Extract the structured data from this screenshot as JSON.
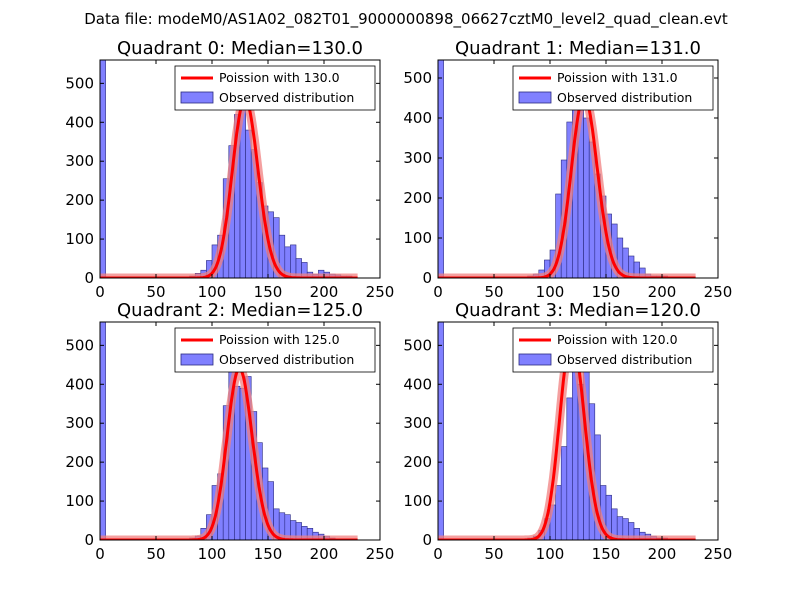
{
  "figure_title": "Data file: modeM0/AS1A02_082T01_9000000898_06627cztM0_level2_quad_clean.evt",
  "colors": {
    "hist_fill": "#8080ff",
    "hist_edge": "#2a2a80",
    "poisson": "#ff0000",
    "poisson_band": "#f08080",
    "axes": "#000000",
    "legend_border": "#000000"
  },
  "chart_data": [
    {
      "type": "bar",
      "title": "Quadrant 0: Median=130.0",
      "median": 130.0,
      "legend": [
        "Poission with 130.0",
        "Observed distribution"
      ],
      "legend_position": "top-right",
      "xlim": [
        0,
        250
      ],
      "ylim": [
        0,
        560
      ],
      "xticks": [
        0,
        50,
        100,
        150,
        200,
        250
      ],
      "yticks": [
        0,
        100,
        200,
        300,
        400,
        500
      ],
      "bin_width": 5,
      "bin_starts": [
        0,
        80,
        85,
        90,
        95,
        100,
        105,
        110,
        115,
        120,
        125,
        130,
        135,
        140,
        145,
        150,
        155,
        160,
        165,
        170,
        175,
        180,
        185,
        190,
        195,
        200,
        205,
        210,
        215,
        220
      ],
      "values": [
        560,
        5,
        12,
        20,
        45,
        85,
        110,
        255,
        340,
        420,
        460,
        380,
        330,
        245,
        185,
        170,
        155,
        110,
        80,
        85,
        50,
        40,
        15,
        10,
        20,
        15,
        10,
        8,
        5,
        5
      ]
    },
    {
      "type": "bar",
      "title": "Quadrant 1: Median=131.0",
      "median": 131.0,
      "legend": [
        "Poission with 131.0",
        "Observed distribution"
      ],
      "legend_position": "top-right",
      "xlim": [
        0,
        250
      ],
      "ylim": [
        0,
        545
      ],
      "xticks": [
        0,
        50,
        100,
        150,
        200,
        250
      ],
      "yticks": [
        0,
        100,
        200,
        300,
        400,
        500
      ],
      "bin_width": 5,
      "bin_starts": [
        0,
        80,
        85,
        90,
        95,
        100,
        105,
        110,
        115,
        120,
        125,
        130,
        135,
        140,
        145,
        150,
        155,
        160,
        165,
        170,
        175,
        180,
        185,
        190,
        195,
        200,
        205,
        210,
        215,
        220
      ],
      "values": [
        545,
        5,
        10,
        20,
        45,
        70,
        210,
        295,
        390,
        420,
        455,
        400,
        340,
        260,
        205,
        160,
        135,
        100,
        75,
        55,
        40,
        25,
        10,
        5,
        5,
        5,
        3,
        3,
        2,
        2
      ]
    },
    {
      "type": "bar",
      "title": "Quadrant 2: Median=125.0",
      "median": 125.0,
      "legend": [
        "Poission with 125.0",
        "Observed distribution"
      ],
      "legend_position": "top-right",
      "xlim": [
        0,
        250
      ],
      "ylim": [
        0,
        560
      ],
      "xticks": [
        0,
        50,
        100,
        150,
        200,
        250
      ],
      "yticks": [
        0,
        100,
        200,
        300,
        400,
        500
      ],
      "bin_width": 5,
      "bin_starts": [
        0,
        80,
        85,
        90,
        95,
        100,
        105,
        110,
        115,
        120,
        125,
        130,
        135,
        140,
        145,
        150,
        155,
        160,
        165,
        170,
        175,
        180,
        185,
        190,
        195,
        200,
        205,
        210
      ],
      "values": [
        560,
        5,
        10,
        30,
        65,
        140,
        170,
        345,
        440,
        395,
        390,
        420,
        330,
        250,
        185,
        150,
        80,
        70,
        65,
        50,
        45,
        35,
        30,
        20,
        15,
        10,
        5,
        3
      ]
    },
    {
      "type": "bar",
      "title": "Quadrant 3: Median=120.0",
      "median": 120.0,
      "legend": [
        "Poission with 120.0",
        "Observed distribution"
      ],
      "legend_position": "top-right",
      "xlim": [
        0,
        250
      ],
      "ylim": [
        0,
        560
      ],
      "xticks": [
        0,
        50,
        100,
        150,
        200,
        250
      ],
      "yticks": [
        0,
        100,
        200,
        300,
        400,
        500
      ],
      "bin_width": 5,
      "bin_starts": [
        0,
        80,
        85,
        90,
        95,
        100,
        105,
        110,
        115,
        120,
        125,
        130,
        135,
        140,
        145,
        150,
        155,
        160,
        165,
        170,
        175,
        180,
        185,
        190,
        195,
        200
      ],
      "values": [
        560,
        5,
        10,
        25,
        55,
        90,
        140,
        240,
        365,
        470,
        400,
        520,
        350,
        270,
        140,
        115,
        80,
        60,
        55,
        45,
        30,
        20,
        15,
        10,
        5,
        5
      ]
    }
  ]
}
